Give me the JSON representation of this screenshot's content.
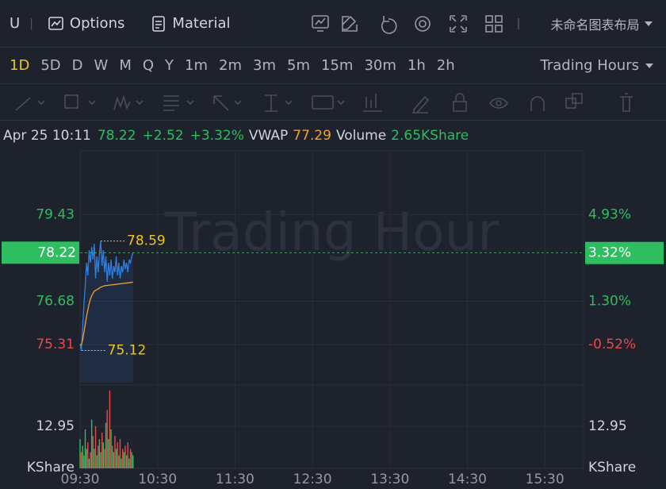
{
  "toolbar": {
    "symbol": "U",
    "options": "Options",
    "material": "Material",
    "layout": "未命名图表布局"
  },
  "intervals": {
    "items": [
      "1D",
      "5D",
      "D",
      "W",
      "M",
      "Q",
      "Y",
      "1m",
      "2m",
      "3m",
      "5m",
      "15m",
      "30m",
      "1h",
      "2h"
    ],
    "active": "1D",
    "session": "Trading Hours"
  },
  "info": {
    "datetime": "Apr 25 10:11",
    "change": "+2.52",
    "change_pct": "+3.32%",
    "volume_label": "Volume",
    "volume": "2.65KShare"
  },
  "chart_data": {
    "type": "line",
    "watermark": "Trading Hour",
    "x": [
      "09:30",
      "09:31",
      "09:32",
      "09:33",
      "09:34",
      "09:35",
      "09:36",
      "09:37",
      "09:38",
      "09:39",
      "09:40",
      "09:41",
      "09:42",
      "09:43",
      "09:44",
      "09:45",
      "09:46",
      "09:47",
      "09:48",
      "09:49",
      "09:50",
      "09:51",
      "09:52",
      "09:53",
      "09:54",
      "09:55",
      "09:56",
      "09:57",
      "09:58",
      "09:59",
      "10:00",
      "10:01",
      "10:02",
      "10:03",
      "10:04",
      "10:05",
      "10:06",
      "10:07",
      "10:08",
      "10:09",
      "10:10",
      "10:11"
    ],
    "xlim": [
      "09:30",
      "16:00"
    ],
    "xticks": [
      "09:30",
      "10:30",
      "11:30",
      "12:30",
      "13:30",
      "14:30",
      "15:30"
    ],
    "ylim": [
      74.1,
      81.45
    ],
    "yticks": [
      79.43,
      76.68,
      75.31
    ],
    "y2lim": [
      -2.11,
      7.6
    ],
    "y2ticks": [
      {
        "value": 4.93,
        "label": "4.93%"
      },
      {
        "value": 1.3,
        "label": "1.30%"
      },
      {
        "value": -0.52,
        "label": "-0.52%"
      }
    ],
    "series": [
      {
        "color": "#2f7fe0",
        "values": [
          75.31,
          75.12,
          75.9,
          76.6,
          77.2,
          77.9,
          77.5,
          78.3,
          77.9,
          78.4,
          78.0,
          78.5,
          77.4,
          78.1,
          77.6,
          78.2,
          78.59,
          77.8,
          78.3,
          77.6,
          78.1,
          77.3,
          77.9,
          77.5,
          78.0,
          77.4,
          77.8,
          77.6,
          78.1,
          77.5,
          77.9,
          77.4,
          77.8,
          77.6,
          78.0,
          77.7,
          77.9,
          77.6,
          78.0,
          77.9,
          78.1,
          78.22
        ]
      },
      {
        "name": "VWAP",
        "color": "#f0a030",
        "values": [
          75.31,
          75.3,
          75.45,
          75.7,
          75.95,
          76.2,
          76.4,
          76.6,
          76.75,
          76.85,
          76.93,
          77.0,
          77.02,
          77.05,
          77.07,
          77.1,
          77.13,
          77.14,
          77.16,
          77.17,
          77.18,
          77.18,
          77.19,
          77.19,
          77.2,
          77.2,
          77.21,
          77.21,
          77.22,
          77.22,
          77.23,
          77.23,
          77.24,
          77.24,
          77.25,
          77.25,
          77.26,
          77.26,
          77.27,
          77.27,
          77.28,
          77.29
        ]
      }
    ],
    "last": 78.22,
    "last_pct": {
      "value": 3.32,
      "label": "3.32%"
    },
    "high": 78.59,
    "low": 75.12,
    "up_color": "#2ebd5f",
    "down_color": "#e84a4a",
    "grid": true,
    "volume": {
      "unit": "KShare",
      "ylim": [
        0,
        25.66
      ],
      "yticks": [
        12.95
      ],
      "values": [
        9,
        5,
        7,
        4,
        12,
        6,
        8,
        3,
        5,
        15,
        10,
        6,
        13,
        4,
        7,
        9,
        5,
        11,
        8,
        6,
        14,
        18,
        9,
        24,
        12,
        7,
        5,
        10,
        6,
        8,
        4,
        9,
        3,
        6,
        5,
        7,
        4,
        8,
        3,
        6,
        5,
        4
      ]
    }
  }
}
